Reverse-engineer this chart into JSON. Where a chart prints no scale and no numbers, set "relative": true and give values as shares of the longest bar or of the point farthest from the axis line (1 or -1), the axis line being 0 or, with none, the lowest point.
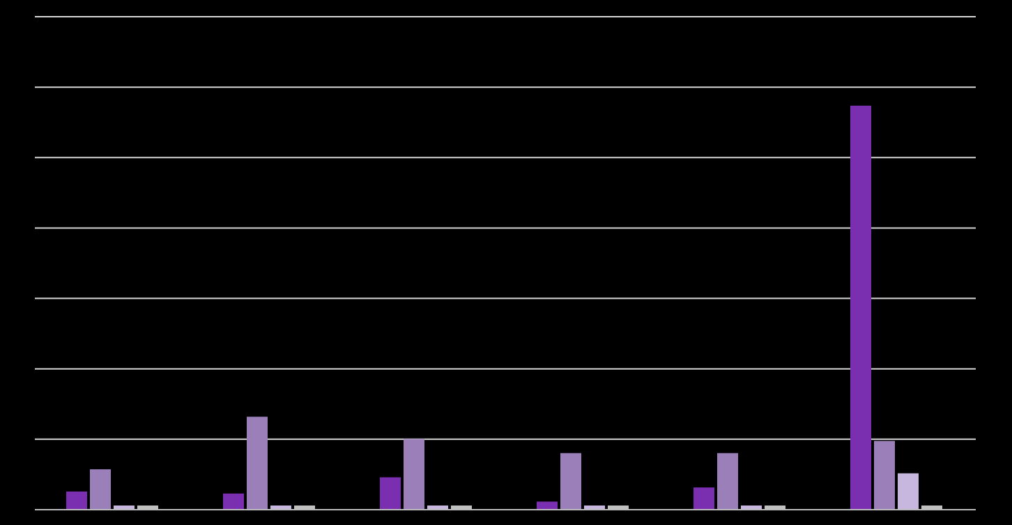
{
  "chart_data": {
    "type": "bar",
    "relative": true,
    "grid": "y",
    "categories": [
      null,
      null,
      null,
      null,
      null,
      null
    ],
    "series": [
      {
        "color": "#7a2fb0",
        "values": [
          0.045,
          0.04,
          0.08,
          0.02,
          0.055,
          1
        ]
      },
      {
        "color": "#9a7fb8",
        "values": [
          0.1,
          0.23,
          0.175,
          0.14,
          0.14,
          0.17
        ]
      },
      {
        "color": "#c7b6dd",
        "values": [
          0,
          0,
          0,
          0,
          0,
          0.09
        ]
      },
      {
        "color": "#c0c0c0",
        "values": [
          0,
          0,
          0,
          0,
          0,
          0
        ]
      }
    ]
  }
}
